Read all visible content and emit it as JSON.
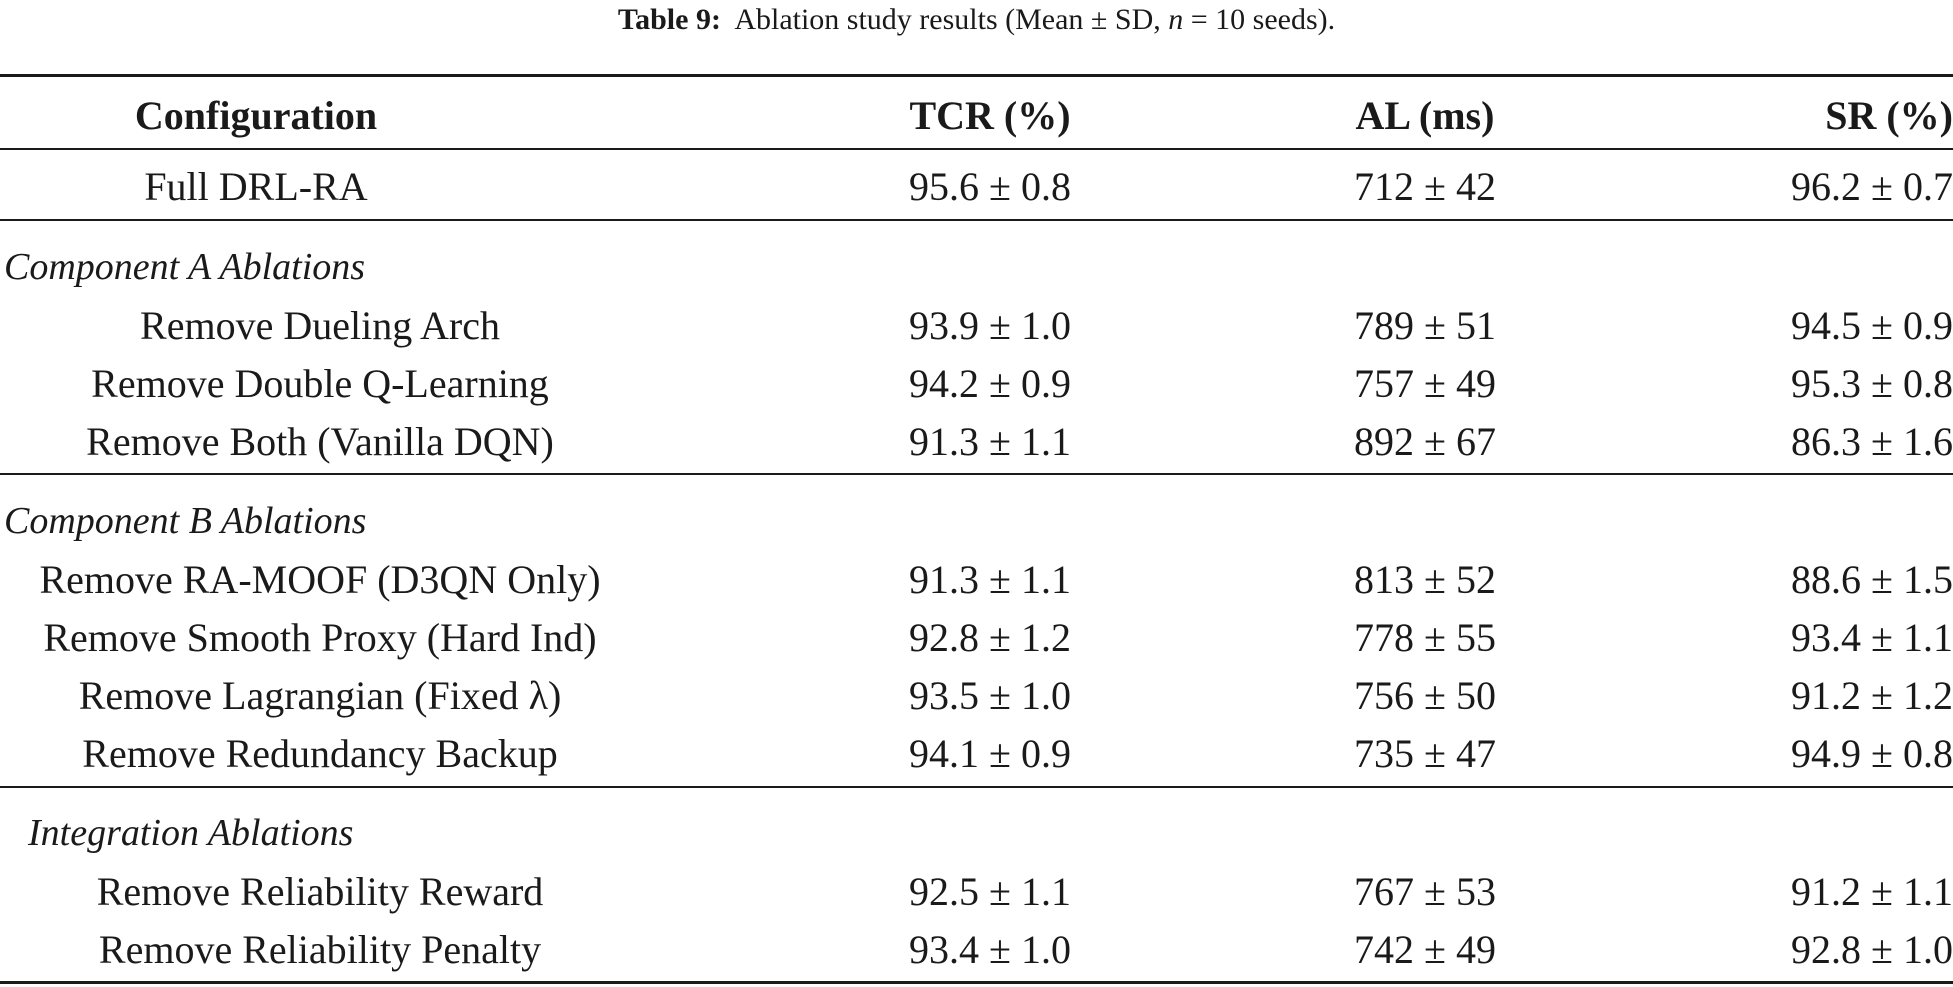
{
  "caption": {
    "label": "Table 9:",
    "text_before_n": "Ablation study results (Mean ± SD, ",
    "n_symbol": "n",
    "text_after_n": " = 10 seeds)."
  },
  "columns": [
    "Configuration",
    "TCR (%)",
    "AL (ms)",
    "SR (%)"
  ],
  "full_row": {
    "config": "Full DRL-RA",
    "tcr": "95.6 ± 0.8",
    "al": "712 ± 42",
    "sr": "96.2 ± 0.7"
  },
  "sections": [
    {
      "title": "Component A Ablations",
      "rows": [
        {
          "config": "Remove Dueling Arch",
          "tcr": "93.9 ± 1.0",
          "al": "789 ± 51",
          "sr": "94.5 ± 0.9"
        },
        {
          "config": "Remove Double Q-Learning",
          "tcr": "94.2 ± 0.9",
          "al": "757 ± 49",
          "sr": "95.3 ± 0.8"
        },
        {
          "config": "Remove Both (Vanilla DQN)",
          "tcr": "91.3 ± 1.1",
          "al": "892 ± 67",
          "sr": "86.3 ± 1.6"
        }
      ]
    },
    {
      "title": "Component B Ablations",
      "rows": [
        {
          "config": "Remove RA-MOOF (D3QN Only)",
          "tcr": "91.3 ± 1.1",
          "al": "813 ± 52",
          "sr": "88.6 ± 1.5"
        },
        {
          "config": "Remove Smooth Proxy (Hard Ind)",
          "tcr": "92.8 ± 1.2",
          "al": "778 ± 55",
          "sr": "93.4 ± 1.1"
        },
        {
          "config": "Remove Lagrangian (Fixed λ)",
          "tcr": "93.5 ± 1.0",
          "al": "756 ± 50",
          "sr": "91.2 ± 1.2"
        },
        {
          "config": "Remove Redundancy Backup",
          "tcr": "94.1 ± 0.9",
          "al": "735 ± 47",
          "sr": "94.9 ± 0.8"
        }
      ]
    },
    {
      "title": "Integration Ablations",
      "rows": [
        {
          "config": "Remove Reliability Reward",
          "tcr": "92.5 ± 1.1",
          "al": "767 ± 53",
          "sr": "91.2 ± 1.1"
        },
        {
          "config": "Remove Reliability Penalty",
          "tcr": "93.4 ± 1.0",
          "al": "742 ± 49",
          "sr": "92.8 ± 1.0"
        }
      ]
    }
  ]
}
